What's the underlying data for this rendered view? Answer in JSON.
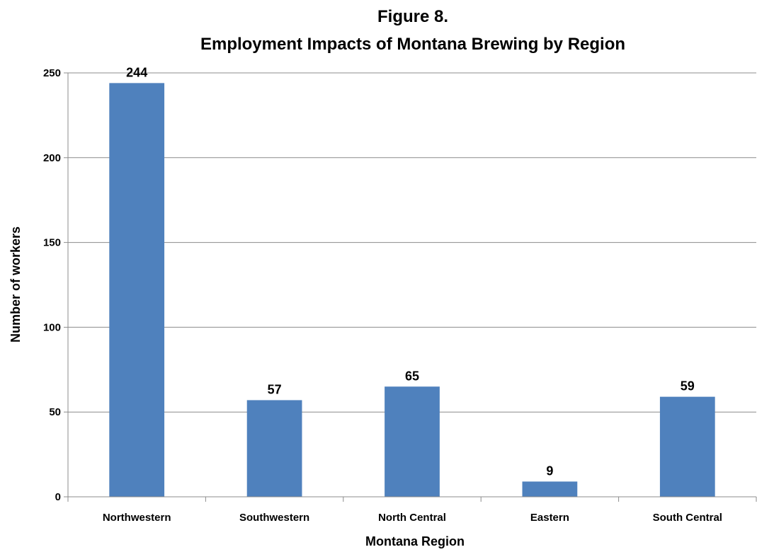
{
  "chart_data": {
    "type": "bar",
    "title_line1": "Figure 8.",
    "title_line2": "Employment Impacts of Montana Brewing by Region",
    "xlabel": "Montana Region",
    "ylabel": "Number of workers",
    "categories": [
      "Northwestern",
      "Southwestern",
      "North Central",
      "Eastern",
      "South Central"
    ],
    "values": [
      244,
      57,
      65,
      9,
      59
    ],
    "ylim": [
      0,
      250
    ],
    "yticks": [
      0,
      50,
      100,
      150,
      200,
      250
    ],
    "grid": true,
    "bar_color": "#4f81bd",
    "legend": "none"
  }
}
